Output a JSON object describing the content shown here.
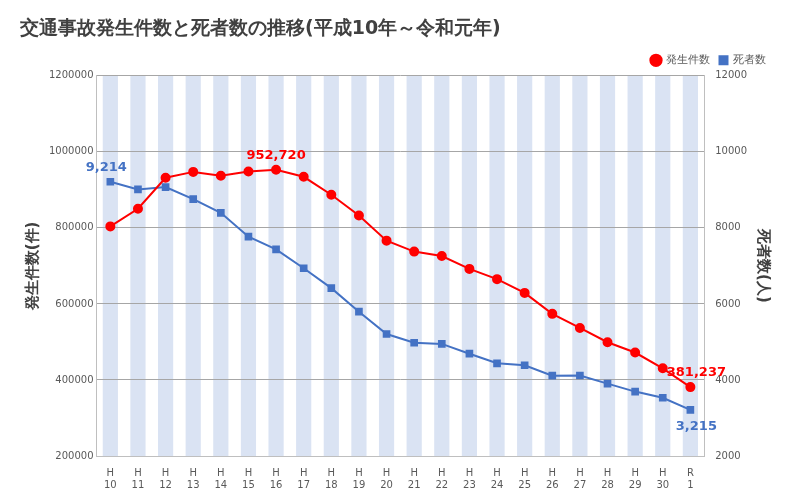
{
  "chart_data": {
    "type": "line",
    "title": "交通事故発生件数と死者数の推移(平成10年～令和元年)",
    "categories": [
      "H\n10",
      "H\n11",
      "H\n12",
      "H\n13",
      "H\n14",
      "H\n15",
      "H\n16",
      "H\n17",
      "H\n18",
      "H\n19",
      "H\n20",
      "H\n21",
      "H\n22",
      "H\n23",
      "H\n24",
      "H\n25",
      "H\n26",
      "H\n27",
      "H\n28",
      "H\n29",
      "H\n30",
      "R\n1"
    ],
    "y_label": "発生件数(件)",
    "y2_label": "死者数(人)",
    "ylim": [
      200000,
      1200000
    ],
    "yticks": [
      200000,
      400000,
      600000,
      800000,
      1000000,
      1200000
    ],
    "y2lim": [
      2000,
      12000
    ],
    "y2ticks": [
      2000,
      4000,
      6000,
      8000,
      10000,
      12000
    ],
    "grid": true,
    "legend": "top-right",
    "series": [
      {
        "name": "発生件数",
        "color": "#ff0000",
        "marker": "circle",
        "line_style": "solid",
        "axis": "y",
        "values": [
          803882,
          850371,
          931950,
          947253,
          936950,
          948281,
          952720,
          934346,
          887257,
          832704,
          766394,
          737637,
          725924,
          692084,
          665157,
          629033,
          573842,
          536899,
          499201,
          472165,
          430601,
          381237
        ],
        "value_labels": [
          null,
          null,
          null,
          null,
          null,
          null,
          "952,720",
          null,
          null,
          null,
          null,
          null,
          null,
          null,
          null,
          null,
          null,
          null,
          null,
          null,
          null,
          "381,237"
        ]
      },
      {
        "name": "死者数",
        "color": "#4472c4",
        "marker": "square",
        "line_style": "solid",
        "axis": "y2",
        "values": [
          9214,
          9012,
          9073,
          8757,
          8396,
          7768,
          7436,
          6937,
          6415,
          5796,
          5209,
          4979,
          4948,
          4691,
          4438,
          4388,
          4113,
          4117,
          3904,
          3694,
          3532,
          3215
        ],
        "value_labels": [
          "9,214",
          null,
          null,
          null,
          null,
          null,
          null,
          null,
          null,
          null,
          null,
          null,
          null,
          null,
          null,
          null,
          null,
          null,
          null,
          null,
          null,
          "3,215"
        ]
      }
    ]
  }
}
